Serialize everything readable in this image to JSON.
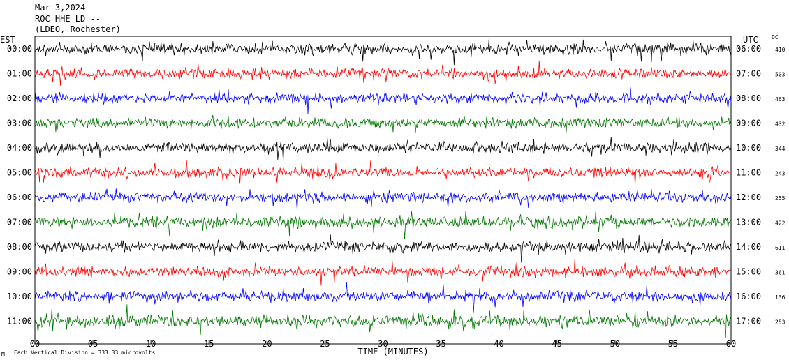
{
  "header": {
    "date": "Mar 3,2024",
    "station": "ROC HHE LD --",
    "network": "(LDEO, Rochester)"
  },
  "left_zone": "EST",
  "right_zone": "UTC",
  "dc_header": "DC",
  "footer_note": "Each Vertical Division =  333.33 microvolts",
  "footer_mark": "M",
  "chart_data": {
    "type": "line",
    "xlabel": "TIME (MINUTES)",
    "xlim": [
      0,
      60
    ],
    "x_ticks": [
      "00",
      "05",
      "10",
      "15",
      "20",
      "25",
      "30",
      "35",
      "40",
      "45",
      "50",
      "55",
      "60"
    ],
    "row_colors": [
      "#000000",
      "#ff0000",
      "#0000ff",
      "#007700"
    ],
    "rows": [
      {
        "est": "00:00",
        "utc": "06:00",
        "dc": "410",
        "amp": 14
      },
      {
        "est": "01:00",
        "utc": "07:00",
        "dc": "503",
        "amp": 13
      },
      {
        "est": "02:00",
        "utc": "08:00",
        "dc": "463",
        "amp": 13
      },
      {
        "est": "03:00",
        "utc": "09:00",
        "dc": "432",
        "amp": 13
      },
      {
        "est": "04:00",
        "utc": "10:00",
        "dc": "344",
        "amp": 14
      },
      {
        "est": "05:00",
        "utc": "11:00",
        "dc": "243",
        "amp": 13
      },
      {
        "est": "06:00",
        "utc": "12:00",
        "dc": "255",
        "amp": 13
      },
      {
        "est": "07:00",
        "utc": "13:00",
        "dc": "422",
        "amp": 14
      },
      {
        "est": "08:00",
        "utc": "14:00",
        "dc": "611",
        "amp": 14
      },
      {
        "est": "09:00",
        "utc": "15:00",
        "dc": "361",
        "amp": 13
      },
      {
        "est": "10:00",
        "utc": "16:00",
        "dc": "136",
        "amp": 14
      },
      {
        "est": "11:00",
        "utc": "17:00",
        "dc": "253",
        "amp": 16
      }
    ]
  }
}
